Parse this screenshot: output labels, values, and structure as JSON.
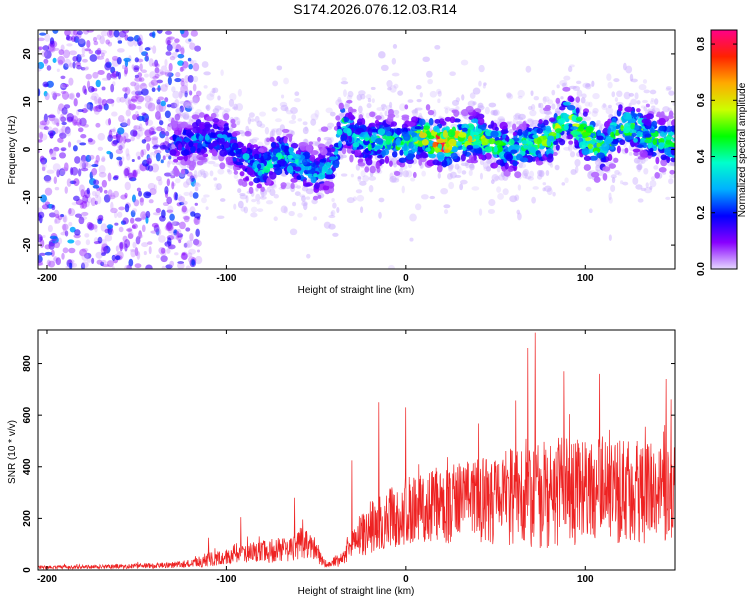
{
  "figure": {
    "title": "S174.2026.076.12.03.R14"
  },
  "chart_data": [
    {
      "type": "heatmap",
      "xlabel": "Height of straight line (km)",
      "ylabel": "Frequency (Hz)",
      "xlim": [
        -205,
        150
      ],
      "ylim": [
        -25,
        25
      ],
      "x_ticks": [
        -200,
        -100,
        0,
        100
      ],
      "y_ticks": [
        20,
        10,
        0,
        -10,
        -20
      ],
      "x_tick_labels": [
        "-200",
        "-100",
        "0",
        "100"
      ],
      "y_tick_labels": [
        "20",
        "10",
        "0",
        "-10",
        "-20"
      ],
      "grid": false,
      "colorbar": {
        "label": "Normalized spectral amplitude",
        "range": [
          0.0,
          0.85
        ],
        "ticks": [
          0.0,
          0.2,
          0.4,
          0.6,
          0.8
        ],
        "tick_labels": [
          "0.0",
          "0.2",
          "0.4",
          "0.6",
          "0.8"
        ],
        "colors": [
          "#e6d9ff",
          "#8800ff",
          "#0000ff",
          "#00b0ff",
          "#00ffcc",
          "#00ff00",
          "#ccff00",
          "#ffaa00",
          "#ff2200",
          "#ff0088"
        ]
      },
      "ridge": {
        "x": [
          -130,
          -120,
          -110,
          -100,
          -90,
          -80,
          -70,
          -60,
          -50,
          -40,
          -35,
          -30,
          -20,
          -10,
          0,
          10,
          20,
          30,
          40,
          50,
          60,
          70,
          80,
          90,
          100,
          110,
          120,
          130,
          140,
          150
        ],
        "freq": [
          1,
          2,
          3,
          2,
          -2,
          -4,
          -1,
          -3,
          -5,
          -3,
          6,
          3,
          1,
          2,
          1,
          3,
          1,
          2,
          3,
          1,
          0,
          1,
          2,
          7,
          3,
          0,
          5,
          4,
          2,
          1
        ],
        "peak": [
          0.2,
          0.25,
          0.3,
          0.25,
          0.3,
          0.35,
          0.4,
          0.35,
          0.3,
          0.3,
          0.4,
          0.35,
          0.4,
          0.45,
          0.45,
          0.55,
          0.85,
          0.6,
          0.55,
          0.45,
          0.4,
          0.45,
          0.5,
          0.5,
          0.6,
          0.45,
          0.5,
          0.45,
          0.45,
          0.4
        ]
      },
      "noise_region": {
        "x_range": [
          -205,
          -125
        ],
        "level": 0.15
      }
    },
    {
      "type": "line",
      "xlabel": "Height of straight line (km)",
      "ylabel": "SNR (10 * v/v)",
      "xlim": [
        -205,
        150
      ],
      "ylim": [
        0,
        930
      ],
      "x_ticks": [
        -200,
        -100,
        0,
        100
      ],
      "y_ticks": [
        0,
        200,
        400,
        600,
        800
      ],
      "x_tick_labels": [
        "-200",
        "-100",
        "0",
        "100"
      ],
      "y_tick_labels": [
        "0",
        "200",
        "400",
        "600",
        "800"
      ],
      "grid": false,
      "color": "#ee2222",
      "envelope": {
        "x": [
          -205,
          -180,
          -150,
          -130,
          -120,
          -110,
          -100,
          -90,
          -80,
          -70,
          -60,
          -55,
          -50,
          -45,
          -40,
          -35,
          -30,
          -25,
          -20,
          -10,
          0,
          10,
          20,
          30,
          40,
          50,
          60,
          70,
          80,
          90,
          100,
          110,
          120,
          130,
          140,
          150
        ],
        "mean": [
          10,
          12,
          15,
          20,
          25,
          40,
          50,
          65,
          70,
          80,
          95,
          100,
          75,
          25,
          30,
          45,
          110,
          130,
          165,
          200,
          230,
          245,
          255,
          260,
          265,
          275,
          285,
          300,
          300,
          310,
          300,
          310,
          305,
          300,
          295,
          300
        ],
        "spread": [
          6,
          7,
          10,
          12,
          15,
          30,
          30,
          35,
          45,
          50,
          60,
          55,
          45,
          15,
          20,
          30,
          60,
          80,
          100,
          120,
          130,
          140,
          150,
          160,
          165,
          175,
          190,
          220,
          220,
          220,
          210,
          210,
          200,
          200,
          190,
          200
        ]
      },
      "peaks": [
        {
          "x": -110,
          "y": 125
        },
        {
          "x": -92,
          "y": 205
        },
        {
          "x": -62,
          "y": 280
        },
        {
          "x": -30,
          "y": 425
        },
        {
          "x": -15,
          "y": 650
        },
        {
          "x": 0,
          "y": 630
        },
        {
          "x": 68,
          "y": 860
        },
        {
          "x": 72,
          "y": 920
        },
        {
          "x": 88,
          "y": 770
        },
        {
          "x": 108,
          "y": 760
        },
        {
          "x": 145,
          "y": 740
        }
      ]
    }
  ]
}
